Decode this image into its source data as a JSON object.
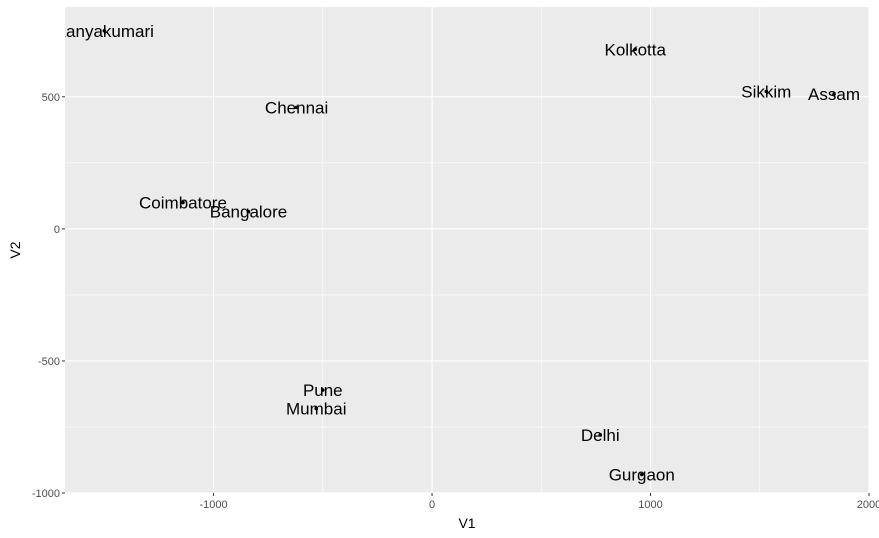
{
  "chart_data": {
    "type": "scatter",
    "xlabel": "V1",
    "ylabel": "V2",
    "xlim": [
      -1680,
      2000
    ],
    "ylim": [
      -1000,
      840
    ],
    "xticks": [
      -1000,
      0,
      1000,
      2000
    ],
    "yticks": [
      -1000,
      -500,
      0,
      500
    ],
    "xtick_labels": [
      "-1000",
      "0",
      "1000",
      "2000"
    ],
    "ytick_labels": [
      "-1000",
      "-500",
      "0",
      "500"
    ],
    "grid": true,
    "legend": "none",
    "panel_color": "#ebebeb",
    "grid_color": "#ffffff",
    "points": [
      {
        "label": "Kanyakumari",
        "x": -1500,
        "y": 750
      },
      {
        "label": "Kolkotta",
        "x": 930,
        "y": 680
      },
      {
        "label": "Sikkim",
        "x": 1530,
        "y": 520
      },
      {
        "label": "Assam",
        "x": 1840,
        "y": 510
      },
      {
        "label": "Chennai",
        "x": -620,
        "y": 460
      },
      {
        "label": "Coimbatore",
        "x": -1140,
        "y": 100
      },
      {
        "label": "Bangalore",
        "x": -840,
        "y": 65
      },
      {
        "label": "Pune",
        "x": -500,
        "y": -610
      },
      {
        "label": "Mumbai",
        "x": -530,
        "y": -680
      },
      {
        "label": "Delhi",
        "x": 770,
        "y": -780
      },
      {
        "label": "Gurgaon",
        "x": 960,
        "y": -930
      }
    ]
  }
}
